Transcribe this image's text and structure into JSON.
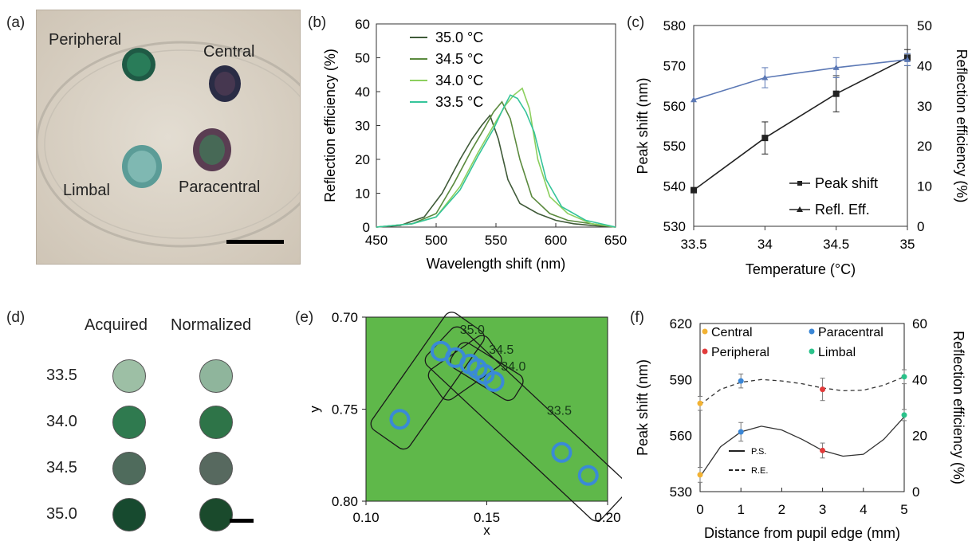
{
  "panels": {
    "a": {
      "label": "(a)",
      "sample_labels": [
        "Peripheral",
        "Central",
        "Limbal",
        "Paracentral"
      ]
    },
    "d": {
      "label": "(d)",
      "col_headers": [
        "Acquired",
        "Normalized"
      ],
      "rows": [
        {
          "temp": "33.5",
          "acquired_color": "#9dbfa5",
          "normalized_color": "#8fb59c"
        },
        {
          "temp": "34.0",
          "acquired_color": "#2f7a4f",
          "normalized_color": "#2e7448"
        },
        {
          "temp": "34.5",
          "acquired_color": "#4f6b5c",
          "normalized_color": "#57695f"
        },
        {
          "temp": "35.0",
          "acquired_color": "#174a2f",
          "normalized_color": "#1a4a2c"
        }
      ]
    },
    "b_label": "(b)",
    "c_label": "(c)",
    "e_label": "(e)",
    "f_label": "(f)"
  },
  "chart_data": [
    {
      "id": "b",
      "type": "line",
      "xlabel": "Wavelength shift (nm)",
      "ylabel": "Reflection efficiency (%)",
      "xlim": [
        450,
        650
      ],
      "ylim": [
        0,
        60
      ],
      "xticks": [
        "450",
        "500",
        "550",
        "600",
        "650"
      ],
      "yticks": [
        "0",
        "10",
        "20",
        "30",
        "40",
        "50",
        "60"
      ],
      "legend_position": "top-left",
      "series": [
        {
          "name": "35.0 °C",
          "color": "#3f5a38",
          "x": [
            450,
            470,
            490,
            505,
            520,
            530,
            538,
            545,
            552,
            560,
            570,
            585,
            600,
            615,
            630,
            650
          ],
          "y": [
            0,
            0.5,
            3,
            10,
            20,
            26,
            30,
            33,
            26,
            14,
            7,
            4,
            2,
            1,
            0.5,
            0
          ]
        },
        {
          "name": "34.5 °C",
          "color": "#5b8a3e",
          "x": [
            450,
            480,
            500,
            515,
            530,
            540,
            548,
            555,
            562,
            570,
            580,
            595,
            610,
            630,
            650
          ],
          "y": [
            0,
            1,
            4,
            13,
            23,
            29,
            34,
            37,
            32,
            20,
            9,
            4,
            2,
            1,
            0
          ]
        },
        {
          "name": "34.0 °C",
          "color": "#8ccf5e",
          "x": [
            450,
            480,
            500,
            520,
            535,
            548,
            558,
            565,
            572,
            578,
            585,
            595,
            610,
            630,
            650
          ],
          "y": [
            0,
            1,
            3,
            12,
            22,
            30,
            36,
            39,
            41,
            35,
            20,
            9,
            4,
            1,
            0
          ]
        },
        {
          "name": "33.5 °C",
          "color": "#35c49a",
          "x": [
            450,
            480,
            500,
            520,
            535,
            548,
            556,
            562,
            568,
            575,
            582,
            592,
            605,
            625,
            650
          ],
          "y": [
            0,
            1,
            3,
            11,
            21,
            29,
            35,
            39,
            38,
            34,
            28,
            14,
            6,
            2,
            0
          ]
        }
      ]
    },
    {
      "id": "c",
      "type": "line",
      "xlabel": "Temperature (°C)",
      "ylabel": "Peak shift (nm)",
      "ylabel_right": "Reflection efficiency (%)",
      "xlim": [
        33.5,
        35
      ],
      "ylim": [
        530,
        580
      ],
      "ylim_right": [
        0,
        50
      ],
      "xticks": [
        "33.5",
        "34",
        "34.5",
        "35"
      ],
      "yticks": [
        "530",
        "540",
        "550",
        "560",
        "570",
        "580"
      ],
      "yticks_right": [
        "0",
        "10",
        "20",
        "30",
        "40",
        "50"
      ],
      "legend_position": "bottom-right",
      "series": [
        {
          "name": "Peak shift",
          "color": "#222222",
          "marker": "square",
          "axis": "left",
          "x": [
            33.5,
            34,
            34.5,
            35
          ],
          "y": [
            539,
            552,
            563,
            572
          ],
          "err": [
            0.5,
            4,
            4.5,
            2
          ]
        },
        {
          "name": "Refl. Eff.",
          "color": "#5b78b5",
          "marker": "triangle",
          "axis": "right",
          "x": [
            33.5,
            34,
            34.5,
            35
          ],
          "y": [
            31.5,
            37,
            39.5,
            41.5
          ],
          "err": [
            0,
            2.5,
            2.5,
            1.5
          ]
        }
      ]
    },
    {
      "id": "e",
      "type": "scatter",
      "xlabel": "x",
      "ylabel": "y",
      "xlim": [
        0.1,
        0.2
      ],
      "ylim": [
        0.8,
        0.7
      ],
      "xticks": [
        "0.10",
        "0.15",
        "0.20"
      ],
      "yticks": [
        "0.70",
        "0.75",
        "0.80"
      ],
      "background": "#5fb84a",
      "point_color": "#3a8ad6",
      "points": [
        {
          "x": 0.114,
          "y": 0.7555
        },
        {
          "x": 0.131,
          "y": 0.7185
        },
        {
          "x": 0.137,
          "y": 0.722
        },
        {
          "x": 0.143,
          "y": 0.7255
        },
        {
          "x": 0.146,
          "y": 0.728
        },
        {
          "x": 0.149,
          "y": 0.731
        },
        {
          "x": 0.153,
          "y": 0.735
        },
        {
          "x": 0.181,
          "y": 0.7735
        },
        {
          "x": 0.192,
          "y": 0.786
        }
      ],
      "group_labels": [
        {
          "text": "35.0",
          "x": 0.144,
          "y": 0.709
        },
        {
          "text": "34.5",
          "x": 0.156,
          "y": 0.72
        },
        {
          "text": "34.0",
          "x": 0.161,
          "y": 0.729
        },
        {
          "text": "33.5",
          "x": 0.18,
          "y": 0.753
        }
      ],
      "groups": [
        {
          "name": "35.0",
          "from": {
            "x": 0.137,
            "y": 0.713
          },
          "to": {
            "x": 0.114,
            "y": 0.756
          },
          "halfwidth": 0.0095
        },
        {
          "name": "34.5",
          "from": {
            "x": 0.147,
            "y": 0.722
          },
          "to": {
            "x": 0.135,
            "y": 0.733
          },
          "halfwidth": 0.0075
        },
        {
          "name": "34.0",
          "from": {
            "x": 0.158,
            "y": 0.736
          },
          "to": {
            "x": 0.142,
            "y": 0.723
          },
          "halfwidth": 0.006
        },
        {
          "name": "33.5",
          "from": {
            "x": 0.138,
            "y": 0.723
          },
          "to": {
            "x": 0.195,
            "y": 0.793
          },
          "halfwidth": 0.0105
        }
      ]
    },
    {
      "id": "f",
      "type": "line",
      "xlabel": "Distance from pupil edge (mm)",
      "ylabel": "Peak shift (nm)",
      "ylabel_right": "Reflection efficiency (%)",
      "xlim": [
        0,
        5
      ],
      "ylim": [
        530,
        620
      ],
      "ylim_right": [
        0,
        60
      ],
      "xticks": [
        "0",
        "1",
        "2",
        "3",
        "4",
        "5"
      ],
      "yticks": [
        "530",
        "560",
        "590",
        "620"
      ],
      "yticks_right": [
        "0",
        "20",
        "40",
        "60"
      ],
      "legend_position": "top",
      "point_legend": [
        {
          "name": "Central",
          "color": "#f2b233"
        },
        {
          "name": "Paracentral",
          "color": "#3a86d6"
        },
        {
          "name": "Peripheral",
          "color": "#e23b3b"
        },
        {
          "name": "Limbal",
          "color": "#2ac28a"
        }
      ],
      "line_legend": [
        {
          "name": "P.S.",
          "dash": "solid"
        },
        {
          "name": "R.E.",
          "dash": "dashed"
        }
      ],
      "ps_points": [
        {
          "x": 0,
          "y": 539,
          "err": 4,
          "color": "#f2b233"
        },
        {
          "x": 1,
          "y": 562,
          "err": 5,
          "color": "#3a86d6"
        },
        {
          "x": 3,
          "y": 552,
          "err": 4,
          "color": "#e23b3b"
        },
        {
          "x": 5,
          "y": 571,
          "err": 3,
          "color": "#2ac28a"
        }
      ],
      "ps_curve": {
        "x": [
          0,
          0.5,
          1,
          1.5,
          2,
          2.5,
          3,
          3.5,
          4,
          4.5,
          5
        ],
        "y": [
          538,
          554,
          562,
          565,
          563,
          558,
          552,
          549,
          550,
          558,
          570
        ]
      },
      "re_points": [
        {
          "x": 0,
          "y": 31.5,
          "err": 2.5,
          "color": "#f2b233"
        },
        {
          "x": 1,
          "y": 39.5,
          "err": 2.5,
          "color": "#3a86d6"
        },
        {
          "x": 3,
          "y": 36.5,
          "err": 4,
          "color": "#e23b3b"
        },
        {
          "x": 5,
          "y": 41,
          "err": 2.5,
          "color": "#2ac28a"
        }
      ],
      "re_curve": {
        "x": [
          0,
          0.5,
          1,
          1.5,
          2,
          2.5,
          3,
          3.5,
          4,
          4.5,
          5
        ],
        "y": [
          31,
          36.5,
          39,
          40,
          39.5,
          38.5,
          37,
          36,
          36.2,
          38,
          41
        ]
      }
    }
  ]
}
